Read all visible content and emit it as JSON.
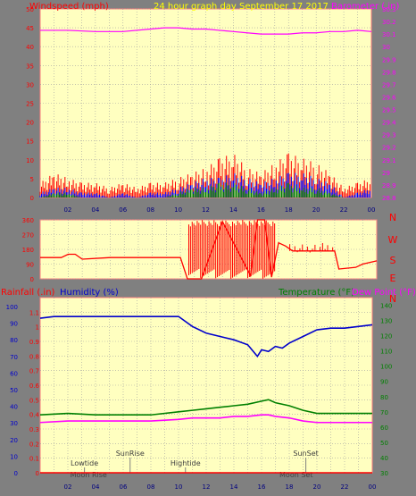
{
  "colors": {
    "background": "#808080",
    "plot_bg": "#ffffc0",
    "grid": "#a0a0a0",
    "panel_border": "#ff8080",
    "wind": "#ff0000",
    "barometer": "#ff00ff",
    "gust": "#ff0000",
    "avg": "#0000ff",
    "low": "#008000",
    "humidity": "#0000cc",
    "temperature": "#008000",
    "dew_point": "#ff00ff",
    "rainfall": "#ff0000",
    "title": "#ffff00",
    "tide_marker": "#808080"
  },
  "chart_data": [
    {
      "type": "line",
      "title": "24 hour graph day   September 17 2017",
      "left_axis_label": "Windspeed (mph)",
      "right_axis_label": "Barometer (.in)",
      "x_tick_labels": [
        "02",
        "04",
        "06",
        "08",
        "10",
        "12",
        "14",
        "16",
        "18",
        "20",
        "22",
        "00"
      ],
      "left_ticks": [
        "0",
        "5",
        "10",
        "15",
        "20",
        "25",
        "30",
        "35",
        "40",
        "45",
        "50"
      ],
      "left_ylim": [
        0,
        50
      ],
      "right_ticks": [
        "28.8",
        "28.9",
        "29",
        "29.1",
        "29.2",
        "29.3",
        "29.4",
        "29.5",
        "29.6",
        "29.7",
        "29.8",
        "29.9",
        "30",
        "30.1",
        "30.2",
        "30.3"
      ],
      "right_ylim": [
        28.8,
        30.3
      ],
      "xlim_hours": [
        0,
        24
      ],
      "grid": true,
      "series": [
        {
          "name": "Barometer",
          "x": [
            0,
            2,
            4,
            6,
            8,
            9,
            10,
            11,
            12,
            13,
            14,
            15,
            16,
            17,
            18,
            19,
            20,
            21,
            22,
            23,
            24
          ],
          "y": [
            30.13,
            30.13,
            30.12,
            30.12,
            30.14,
            30.15,
            30.15,
            30.14,
            30.14,
            30.13,
            30.12,
            30.11,
            30.1,
            30.1,
            30.1,
            30.11,
            30.11,
            30.12,
            30.12,
            30.13,
            30.12
          ]
        },
        {
          "name": "Gust",
          "x": [
            0,
            1,
            2,
            3,
            4,
            5,
            6,
            7,
            8,
            9,
            10,
            11,
            12,
            13,
            14,
            15,
            16,
            17,
            18,
            19,
            20,
            21,
            22,
            23,
            24
          ],
          "y": [
            3,
            5,
            4,
            3,
            3,
            2,
            3,
            2,
            3,
            3,
            4,
            5,
            6,
            8,
            9,
            6,
            5,
            7,
            9,
            8,
            7,
            5,
            2,
            3,
            4
          ]
        },
        {
          "name": "Average",
          "x": [
            0,
            1,
            2,
            3,
            4,
            5,
            6,
            7,
            8,
            9,
            10,
            11,
            12,
            13,
            14,
            15,
            16,
            17,
            18,
            19,
            20,
            21,
            22,
            23,
            24
          ],
          "y": [
            1,
            2,
            2,
            1,
            1,
            0,
            1,
            0,
            1,
            1,
            2,
            3,
            4,
            4,
            5,
            4,
            3,
            4,
            5,
            5,
            4,
            3,
            0,
            1,
            2
          ]
        },
        {
          "name": "Low",
          "x": [
            0,
            1,
            2,
            3,
            4,
            5,
            6,
            7,
            8,
            9,
            10,
            11,
            12,
            13,
            14,
            15,
            16,
            17,
            18,
            19,
            20,
            21,
            22,
            23,
            24
          ],
          "y": [
            0,
            1,
            1,
            0,
            0,
            0,
            0,
            0,
            0,
            0,
            1,
            2,
            2,
            3,
            3,
            2,
            1,
            2,
            3,
            2,
            2,
            1,
            0,
            0,
            0
          ]
        }
      ]
    },
    {
      "type": "line",
      "left_ticks": [
        "0",
        "90",
        "180",
        "270",
        "360"
      ],
      "left_ylim": [
        0,
        360
      ],
      "right_ticks": [
        "N",
        "W",
        "S",
        "E",
        "N"
      ],
      "xlim_hours": [
        0,
        24
      ],
      "series": [
        {
          "name": "Wind direction",
          "x": [
            0,
            1.5,
            2,
            2.5,
            3,
            5,
            6,
            8,
            10,
            10.5,
            11.5,
            13,
            15,
            15.5,
            16,
            16.5,
            17,
            17.5,
            18,
            21,
            21.3,
            22.5,
            23,
            24
          ],
          "y": [
            130,
            130,
            150,
            150,
            120,
            130,
            130,
            130,
            130,
            0,
            0,
            350,
            20,
            360,
            360,
            10,
            220,
            200,
            170,
            170,
            60,
            70,
            90,
            110
          ]
        }
      ]
    },
    {
      "type": "line",
      "left_axis_label": "Rainfall (.in)",
      "left2_axis_label": "Humidity (%)",
      "right_axis_label": "Temperature (°F)",
      "right2_axis_label": "Dew Point (°F)",
      "x_tick_labels": [
        "02",
        "04",
        "06",
        "08",
        "10",
        "12",
        "14",
        "16",
        "18",
        "20",
        "22",
        "00"
      ],
      "rain_ticks": [
        "0",
        "0.1",
        "0.2",
        "0.3",
        "0.4",
        "0.5",
        "0.6",
        "0.7",
        "0.8",
        "0.9",
        "1",
        "1.1"
      ],
      "rain_ylim": [
        0,
        1.2
      ],
      "humidity_ticks": [
        "0",
        "10",
        "20",
        "30",
        "40",
        "50",
        "60",
        "70",
        "80",
        "90",
        "100"
      ],
      "humidity_ylim": [
        0,
        100
      ],
      "temp_ticks": [
        "30",
        "40",
        "50",
        "60",
        "70",
        "80",
        "90",
        "100",
        "110",
        "120",
        "130",
        "140"
      ],
      "temp_ylim": [
        30,
        145
      ],
      "xlim_hours": [
        0,
        24
      ],
      "series": [
        {
          "name": "Humidity",
          "x": [
            0,
            1,
            2,
            4,
            6,
            8,
            10,
            11,
            12,
            13,
            14,
            15,
            15.7,
            16,
            16.5,
            17,
            17.5,
            18,
            19,
            20,
            21,
            22,
            23,
            24
          ],
          "y": [
            93,
            94,
            94,
            94,
            94,
            94,
            94,
            88,
            84,
            82,
            80,
            77,
            70,
            74,
            73,
            76,
            75,
            78,
            82,
            86,
            87,
            87,
            88,
            89
          ]
        },
        {
          "name": "Temperature",
          "x": [
            0,
            2,
            4,
            6,
            8,
            10,
            11,
            12,
            13,
            14,
            15,
            16,
            16.5,
            17,
            18,
            19,
            20,
            21,
            22,
            23,
            24
          ],
          "y": [
            68,
            69,
            68,
            68,
            68,
            70,
            71,
            72,
            73,
            74,
            75,
            77,
            78,
            76,
            74,
            71,
            69,
            69,
            69,
            69,
            69
          ]
        },
        {
          "name": "Dew Point",
          "x": [
            0,
            2,
            4,
            6,
            8,
            10,
            11,
            12,
            13,
            14,
            15,
            16,
            16.5,
            17,
            18,
            19,
            20,
            21,
            22,
            23,
            24
          ],
          "y": [
            63,
            64,
            64,
            64,
            64,
            65,
            66,
            66,
            66,
            67,
            67,
            68,
            68,
            67,
            66,
            64,
            63,
            63,
            63,
            63,
            63
          ]
        },
        {
          "name": "Rainfall",
          "x": [
            0,
            24
          ],
          "y": [
            0,
            0
          ]
        }
      ],
      "annotations": [
        {
          "label": "Lowtide",
          "hour": 3.2,
          "level": 2
        },
        {
          "label": "Moon Rise",
          "hour": 3.5,
          "level": 1
        },
        {
          "label": "SunRise",
          "hour": 6.5,
          "level": 3
        },
        {
          "label": "Hightide",
          "hour": 10.5,
          "level": 2
        },
        {
          "label": "SunSet",
          "hour": 19.2,
          "level": 3
        },
        {
          "label": "Moon Set",
          "hour": 18.5,
          "level": 1
        }
      ]
    }
  ]
}
